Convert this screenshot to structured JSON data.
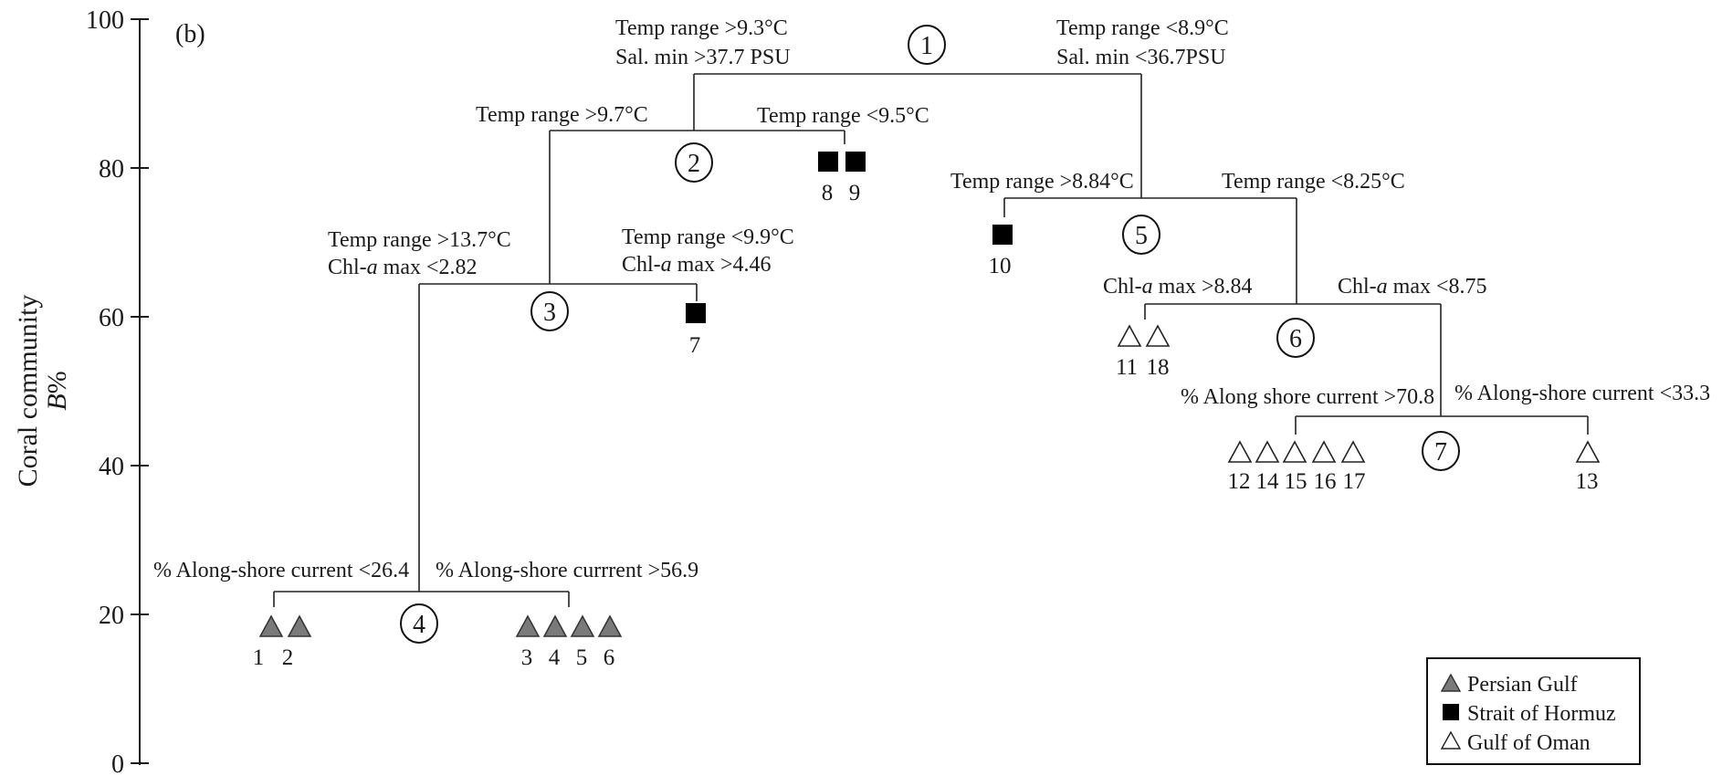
{
  "panel_label": "(b)",
  "y_axis": {
    "label_line1": "Coral community",
    "label_line2_italic": "B",
    "label_line2_rest": "%",
    "range": [
      0,
      100
    ],
    "ticks": [
      "0",
      "20",
      "40",
      "60",
      "80",
      "100"
    ]
  },
  "colors": {
    "persian_gulf": "#7a7a7a",
    "strait_of_hormuz": "#000000",
    "gulf_of_oman": "#ffffff"
  },
  "legend": {
    "placement": "bottom-right",
    "items": [
      {
        "label": "Persian Gulf",
        "marker": "triangle-grey"
      },
      {
        "label": "Strait of Hormuz",
        "marker": "square-black"
      },
      {
        "label": "Gulf of Oman",
        "marker": "triangle-open"
      }
    ]
  },
  "nodes": [
    "1",
    "2",
    "3",
    "4",
    "5",
    "6",
    "7"
  ],
  "splits": {
    "n1_left_l1": "Temp range >9.3°C",
    "n1_left_l2": "Sal. min >37.7 PSU",
    "n1_right_l1": "Temp range <8.9°C",
    "n1_right_l2": "Sal. min <36.7PSU",
    "n2_left": "Temp range >9.7°C",
    "n2_right": "Temp range <9.5°C",
    "n3_left_l1": "Temp range >13.7°C",
    "n3_left_l2_pre": "Chl-",
    "n3_left_l2_it": "a",
    "n3_left_l2_post": " max <2.82",
    "n3_right_l1": "Temp range <9.9°C",
    "n3_right_l2_pre": "Chl-",
    "n3_right_l2_it": "a",
    "n3_right_l2_post": " max >4.46",
    "n4_left": "% Along-shore current <26.4",
    "n4_right": "% Along-shore currrent >56.9",
    "n5_left": "Temp range >8.84°C",
    "n5_right": "Temp range <8.25°C",
    "n6_left_pre": "Chl-",
    "n6_left_it": "a",
    "n6_left_post": " max >8.84",
    "n6_right_pre": "Chl-",
    "n6_right_it": "a",
    "n6_right_post": " max <8.75",
    "n7_left": "% Along shore current >70.8",
    "n7_right": "% Along-shore current <33.3"
  },
  "sites": [
    {
      "num": "1",
      "group": "Persian Gulf"
    },
    {
      "num": "2",
      "group": "Persian Gulf"
    },
    {
      "num": "3",
      "group": "Persian Gulf"
    },
    {
      "num": "4",
      "group": "Persian Gulf"
    },
    {
      "num": "5",
      "group": "Persian Gulf"
    },
    {
      "num": "6",
      "group": "Persian Gulf"
    },
    {
      "num": "7",
      "group": "Strait of Hormuz"
    },
    {
      "num": "8",
      "group": "Strait of Hormuz"
    },
    {
      "num": "9",
      "group": "Strait of Hormuz"
    },
    {
      "num": "10",
      "group": "Strait of Hormuz"
    },
    {
      "num": "11",
      "group": "Gulf of Oman"
    },
    {
      "num": "18",
      "group": "Gulf of Oman"
    },
    {
      "num": "12",
      "group": "Gulf of Oman"
    },
    {
      "num": "14",
      "group": "Gulf of Oman"
    },
    {
      "num": "15",
      "group": "Gulf of Oman"
    },
    {
      "num": "16",
      "group": "Gulf of Oman"
    },
    {
      "num": "17",
      "group": "Gulf of Oman"
    },
    {
      "num": "13",
      "group": "Gulf of Oman"
    }
  ]
}
